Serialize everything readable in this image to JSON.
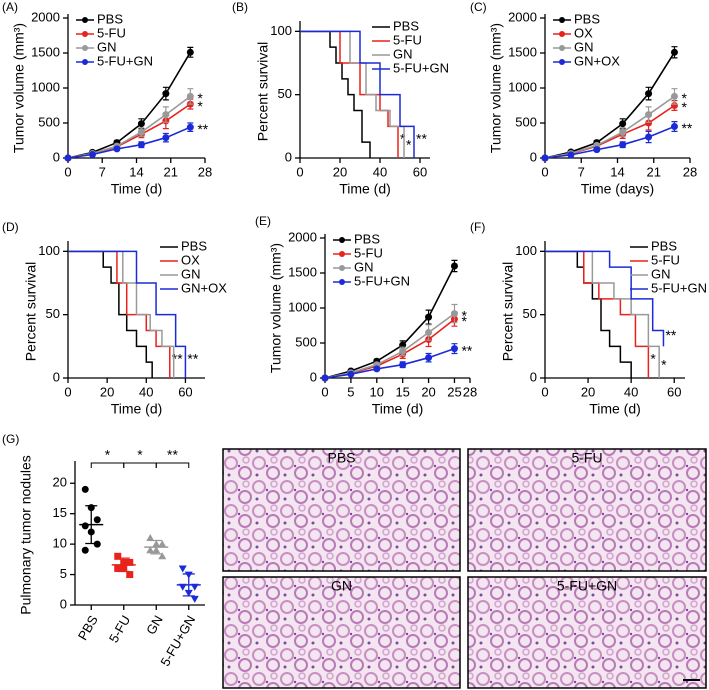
{
  "chart_data": [
    {
      "type": "line",
      "panel_label": "(A)",
      "y_label": "Tumor volume (mm³)",
      "x_label": "Time (d)",
      "x": [
        0,
        5,
        10,
        15,
        20,
        25
      ],
      "xlim": [
        0,
        28
      ],
      "xticks": [
        0,
        7,
        14,
        21,
        28
      ],
      "ylim": [
        0,
        2000
      ],
      "yticks": [
        0,
        500,
        1000,
        1500,
        2000
      ],
      "legend": "upper left",
      "series": [
        {
          "name": "PBS",
          "color": "#000000",
          "values": [
            0,
            80,
            220,
            490,
            920,
            1510
          ],
          "errors": [
            0,
            15,
            30,
            70,
            90,
            70
          ]
        },
        {
          "name": "5-FU",
          "color": "#e8221c",
          "values": [
            0,
            60,
            160,
            340,
            530,
            770
          ],
          "errors": [
            0,
            10,
            25,
            50,
            110,
            70
          ],
          "annotation": "*"
        },
        {
          "name": "GN",
          "color": "#999999",
          "values": [
            0,
            65,
            170,
            370,
            620,
            880
          ],
          "errors": [
            0,
            10,
            25,
            60,
            110,
            110
          ],
          "annotation": "*"
        },
        {
          "name": "5-FU+GN",
          "color": "#1c2bd8",
          "values": [
            0,
            50,
            130,
            190,
            290,
            440
          ],
          "errors": [
            0,
            10,
            20,
            40,
            60,
            60
          ],
          "annotation": "**"
        }
      ]
    },
    {
      "type": "survival",
      "panel_label": "(B)",
      "y_label": "Percent survival",
      "x_label": "Time (d)",
      "xlim": [
        0,
        65
      ],
      "xticks": [
        0,
        20,
        40,
        60
      ],
      "ylim": [
        0,
        105
      ],
      "yticks": [
        0,
        50,
        100
      ],
      "legend": "upper right",
      "series": [
        {
          "name": "PBS",
          "color": "#000000",
          "x": [
            0,
            15,
            18,
            21,
            24,
            27,
            31,
            35
          ],
          "values": [
            100,
            87.5,
            75,
            62.5,
            50,
            37.5,
            12.5,
            0
          ]
        },
        {
          "name": "5-FU",
          "color": "#e8221c",
          "x": [
            0,
            20,
            30,
            40,
            44,
            49
          ],
          "values": [
            100,
            75,
            50,
            37.5,
            25,
            0
          ],
          "annotation": "*"
        },
        {
          "name": "GN",
          "color": "#999999",
          "x": [
            0,
            25,
            33,
            38,
            45,
            52
          ],
          "values": [
            100,
            75,
            50,
            37.5,
            25,
            0
          ],
          "annotation": "*"
        },
        {
          "name": "5-FU+GN",
          "color": "#1c2bd8",
          "x": [
            0,
            30,
            40,
            50,
            57
          ],
          "values": [
            100,
            75,
            50,
            25,
            0
          ],
          "annotation": "**"
        }
      ]
    },
    {
      "type": "line",
      "panel_label": "(C)",
      "y_label": "Tumor volume (mm³)",
      "x_label": "Time (days)",
      "x": [
        0,
        5,
        10,
        15,
        20,
        25
      ],
      "xlim": [
        0,
        28
      ],
      "xticks": [
        0,
        7,
        14,
        21,
        28
      ],
      "ylim": [
        0,
        2000
      ],
      "yticks": [
        0,
        500,
        1000,
        1500,
        2000
      ],
      "legend": "upper left",
      "series": [
        {
          "name": "PBS",
          "color": "#000000",
          "values": [
            0,
            85,
            220,
            490,
            920,
            1510
          ],
          "errors": [
            0,
            15,
            30,
            70,
            90,
            80
          ]
        },
        {
          "name": "OX",
          "color": "#e8221c",
          "values": [
            0,
            60,
            170,
            340,
            500,
            750
          ],
          "errors": [
            0,
            10,
            25,
            60,
            100,
            70
          ],
          "annotation": "*"
        },
        {
          "name": "GN",
          "color": "#999999",
          "values": [
            0,
            65,
            180,
            370,
            620,
            880
          ],
          "errors": [
            0,
            10,
            25,
            60,
            110,
            110
          ],
          "annotation": "*"
        },
        {
          "name": "GN+OX",
          "color": "#1c2bd8",
          "values": [
            0,
            45,
            120,
            190,
            300,
            450
          ],
          "errors": [
            0,
            10,
            20,
            40,
            80,
            70
          ],
          "annotation": "**"
        }
      ]
    },
    {
      "type": "survival",
      "panel_label": "(D)",
      "y_label": "Percent survival",
      "x_label": "Time (d)",
      "xlim": [
        0,
        70
      ],
      "xticks": [
        0,
        20,
        40,
        60
      ],
      "ylim": [
        0,
        105
      ],
      "yticks": [
        0,
        50,
        100
      ],
      "legend": "upper right",
      "series": [
        {
          "name": "PBS",
          "color": "#000000",
          "x": [
            0,
            18,
            22,
            26,
            30,
            35,
            40,
            43
          ],
          "values": [
            100,
            87.5,
            75,
            50,
            37.5,
            25,
            12.5,
            0
          ]
        },
        {
          "name": "OX",
          "color": "#e8221c",
          "x": [
            0,
            25,
            30,
            40,
            45,
            52
          ],
          "values": [
            100,
            75,
            50,
            37.5,
            25,
            0
          ],
          "annotation": "**"
        },
        {
          "name": "GN",
          "color": "#999999",
          "x": [
            0,
            28,
            35,
            42,
            48,
            54
          ],
          "values": [
            100,
            75,
            50,
            37.5,
            25,
            0
          ]
        },
        {
          "name": "GN+OX",
          "color": "#1c2bd8",
          "x": [
            0,
            35,
            45,
            55,
            60
          ],
          "values": [
            100,
            75,
            50,
            25,
            0
          ],
          "annotation": "**"
        }
      ]
    },
    {
      "type": "line",
      "panel_label": "(E)",
      "y_label": "Tumor volume (mm³)",
      "x_label": "Time (d)",
      "x": [
        0,
        5,
        10,
        15,
        20,
        25
      ],
      "xlim": [
        0,
        28
      ],
      "xticks": [
        0,
        5,
        10,
        15,
        20,
        25,
        28
      ],
      "ylim": [
        0,
        2000
      ],
      "yticks": [
        0,
        500,
        1000,
        1500,
        2000
      ],
      "legend": "upper left",
      "series": [
        {
          "name": "PBS",
          "color": "#000000",
          "values": [
            0,
            100,
            240,
            470,
            870,
            1600
          ],
          "errors": [
            0,
            15,
            30,
            60,
            100,
            80
          ]
        },
        {
          "name": "5-FU",
          "color": "#e8221c",
          "values": [
            0,
            70,
            170,
            340,
            550,
            840
          ],
          "errors": [
            0,
            10,
            25,
            60,
            100,
            100
          ],
          "annotation": "*"
        },
        {
          "name": "GN",
          "color": "#999999",
          "values": [
            0,
            75,
            190,
            380,
            650,
            920
          ],
          "errors": [
            0,
            10,
            25,
            60,
            110,
            130
          ],
          "annotation": "*"
        },
        {
          "name": "5-FU+GN",
          "color": "#1c2bd8",
          "values": [
            0,
            55,
            130,
            190,
            290,
            420
          ],
          "errors": [
            0,
            10,
            20,
            40,
            60,
            70
          ],
          "annotation": "**"
        }
      ]
    },
    {
      "type": "survival",
      "panel_label": "(F)",
      "y_label": "Percent survival",
      "x_label": "Time (d)",
      "xlim": [
        0,
        65
      ],
      "xticks": [
        0,
        20,
        40,
        60
      ],
      "ylim": [
        0,
        105
      ],
      "yticks": [
        0,
        50,
        100
      ],
      "legend": "upper right",
      "series": [
        {
          "name": "PBS",
          "color": "#000000",
          "x": [
            0,
            15,
            18,
            22,
            26,
            30,
            35,
            40
          ],
          "values": [
            100,
            87.5,
            75,
            62.5,
            37.5,
            25,
            12.5,
            0
          ]
        },
        {
          "name": "5-FU",
          "color": "#e8221c",
          "x": [
            0,
            18,
            25,
            35,
            42,
            48
          ],
          "values": [
            100,
            75,
            62.5,
            50,
            25,
            0
          ],
          "annotation": "*"
        },
        {
          "name": "GN",
          "color": "#999999",
          "x": [
            0,
            22,
            32,
            40,
            48,
            53
          ],
          "values": [
            100,
            75,
            62.5,
            50,
            25,
            0
          ],
          "annotation": "*"
        },
        {
          "name": "5-FU+GN",
          "color": "#1c2bd8",
          "x": [
            0,
            30,
            40,
            50,
            55
          ],
          "values": [
            100,
            87.5,
            62.5,
            37.5,
            25
          ],
          "annotation": "**"
        }
      ]
    },
    {
      "type": "dot",
      "panel_label": "(G)",
      "y_label": "Pulmonary tumor nodules",
      "categories": [
        "PBS",
        "5-FU",
        "GN",
        "5-FU+GN"
      ],
      "ylim": [
        0,
        23
      ],
      "yticks": [
        0,
        5,
        10,
        15,
        20
      ],
      "colors": [
        "#000000",
        "#e8221c",
        "#999999",
        "#1c2bd8"
      ],
      "markers": [
        "circle",
        "square",
        "triangle",
        "triangle-down"
      ],
      "values": [
        [
          19,
          16,
          14,
          13,
          12,
          10,
          9
        ],
        [
          8,
          7,
          7,
          6,
          6,
          5
        ],
        [
          11,
          10,
          10,
          9,
          9,
          8
        ],
        [
          6,
          5,
          3,
          3,
          2,
          1
        ]
      ],
      "means": [
        13.2,
        6.6,
        9.5,
        3.3
      ],
      "sd": [
        3.1,
        1.1,
        1.1,
        1.8
      ],
      "brackets": [
        {
          "from": 0,
          "to": 1,
          "label": "*"
        },
        {
          "from": 1,
          "to": 2,
          "label": "*"
        },
        {
          "from": 2,
          "to": 3,
          "label": "**"
        }
      ]
    }
  ],
  "images": [
    {
      "label": "PBS"
    },
    {
      "label": "5-FU"
    },
    {
      "label": "GN"
    },
    {
      "label": "5-FU+GN"
    }
  ]
}
